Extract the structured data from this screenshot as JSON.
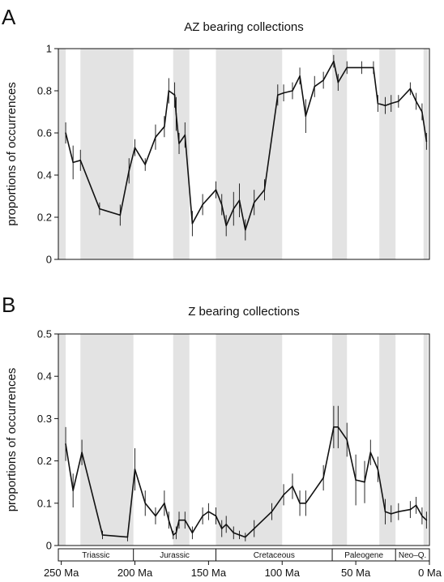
{
  "chart_data": [
    {
      "type": "line",
      "panel_letter": "A",
      "title": "AZ bearing collections",
      "ylabel": "proportions of occurrences",
      "xlim": [
        252,
        0
      ],
      "ylim": [
        0,
        1
      ],
      "yticks": [
        "0",
        "0.2",
        "0.4",
        "0.6",
        "0.8",
        "1"
      ],
      "shaded_intervals": [
        [
          252,
          247
        ],
        [
          237,
          201
        ],
        [
          174,
          163
        ],
        [
          145,
          100
        ],
        [
          66,
          56
        ],
        [
          34,
          23
        ],
        [
          4,
          1
        ]
      ],
      "series": [
        {
          "x": [
            247,
            242,
            237,
            224,
            210,
            204,
            200,
            193,
            186,
            180,
            177,
            173,
            172,
            170,
            166,
            161,
            154,
            145,
            141,
            138,
            133,
            129,
            125,
            119,
            112,
            103,
            99,
            93,
            88,
            84,
            78,
            72,
            65,
            62,
            56,
            46,
            38,
            35,
            30,
            26,
            21,
            13,
            9,
            5,
            2
          ],
          "y": [
            0.6,
            0.46,
            0.47,
            0.24,
            0.21,
            0.42,
            0.53,
            0.45,
            0.58,
            0.63,
            0.8,
            0.78,
            0.69,
            0.55,
            0.59,
            0.17,
            0.26,
            0.33,
            0.26,
            0.16,
            0.24,
            0.28,
            0.14,
            0.27,
            0.33,
            0.78,
            0.79,
            0.8,
            0.87,
            0.68,
            0.82,
            0.85,
            0.94,
            0.84,
            0.91,
            0.91,
            0.91,
            0.74,
            0.73,
            0.74,
            0.75,
            0.81,
            0.75,
            0.7,
            0.56
          ],
          "err": [
            0.05,
            0.08,
            0.05,
            0.03,
            0.05,
            0.06,
            0.04,
            0.03,
            0.06,
            0.05,
            0.06,
            0.06,
            0.08,
            0.05,
            0.06,
            0.06,
            0.05,
            0.04,
            0.05,
            0.05,
            0.08,
            0.08,
            0.05,
            0.06,
            0.05,
            0.05,
            0.04,
            0.04,
            0.04,
            0.08,
            0.05,
            0.04,
            0.03,
            0.04,
            0.03,
            0.03,
            0.03,
            0.04,
            0.04,
            0.04,
            0.03,
            0.03,
            0.04,
            0.04,
            0.04
          ]
        }
      ]
    },
    {
      "type": "line",
      "panel_letter": "B",
      "title": "Z bearing collections",
      "ylabel": "proportions of occurrences",
      "xlim": [
        252,
        0
      ],
      "ylim": [
        0,
        0.5
      ],
      "yticks": [
        "0",
        "0.1",
        "0.2",
        "0.3",
        "0.4",
        "0.5"
      ],
      "shaded_intervals": [
        [
          252,
          247
        ],
        [
          237,
          201
        ],
        [
          174,
          163
        ],
        [
          145,
          100
        ],
        [
          66,
          56
        ],
        [
          34,
          23
        ],
        [
          4,
          1
        ]
      ],
      "series": [
        {
          "x": [
            247,
            242,
            236,
            222,
            205,
            200,
            193,
            186,
            180,
            177,
            174,
            172,
            170,
            166,
            161,
            154,
            150,
            145,
            141,
            138,
            133,
            129,
            125,
            119,
            107,
            99,
            93,
            88,
            84,
            72,
            65,
            62,
            56,
            50,
            44,
            40,
            35,
            30,
            26,
            21,
            13,
            9,
            5,
            2
          ],
          "y": [
            0.24,
            0.13,
            0.22,
            0.025,
            0.02,
            0.18,
            0.1,
            0.07,
            0.1,
            0.06,
            0.025,
            0.03,
            0.06,
            0.06,
            0.03,
            0.07,
            0.08,
            0.07,
            0.04,
            0.05,
            0.03,
            0.025,
            0.02,
            0.04,
            0.08,
            0.12,
            0.14,
            0.1,
            0.1,
            0.16,
            0.28,
            0.28,
            0.25,
            0.155,
            0.15,
            0.22,
            0.18,
            0.08,
            0.075,
            0.08,
            0.085,
            0.095,
            0.07,
            0.06
          ],
          "err": [
            0.04,
            0.04,
            0.03,
            0.01,
            0.01,
            0.05,
            0.03,
            0.02,
            0.03,
            0.02,
            0.01,
            0.015,
            0.02,
            0.02,
            0.015,
            0.02,
            0.02,
            0.02,
            0.02,
            0.02,
            0.015,
            0.01,
            0.01,
            0.02,
            0.02,
            0.025,
            0.03,
            0.03,
            0.03,
            0.03,
            0.05,
            0.05,
            0.04,
            0.06,
            0.05,
            0.03,
            0.03,
            0.03,
            0.02,
            0.02,
            0.02,
            0.02,
            0.02,
            0.02
          ]
        }
      ]
    }
  ],
  "xticks": [
    {
      "value": 250,
      "label": "250 Ma"
    },
    {
      "value": 200,
      "label": "200 Ma"
    },
    {
      "value": 150,
      "label": "150 Ma"
    },
    {
      "value": 100,
      "label": "100 Ma"
    },
    {
      "value": 50,
      "label": "50 Ma"
    },
    {
      "value": 0,
      "label": "0 Ma"
    }
  ],
  "periods": [
    {
      "name": "Triassic",
      "start": 252,
      "end": 201
    },
    {
      "name": "Jurassic",
      "start": 201,
      "end": 145
    },
    {
      "name": "Cretaceous",
      "start": 145,
      "end": 66
    },
    {
      "name": "Paleogene",
      "start": 66,
      "end": 23
    },
    {
      "name": "Neo–Q.",
      "start": 23,
      "end": 0
    }
  ],
  "colors": {
    "shade": "#e3e3e3",
    "line": "#111111",
    "axis": "#111111"
  }
}
